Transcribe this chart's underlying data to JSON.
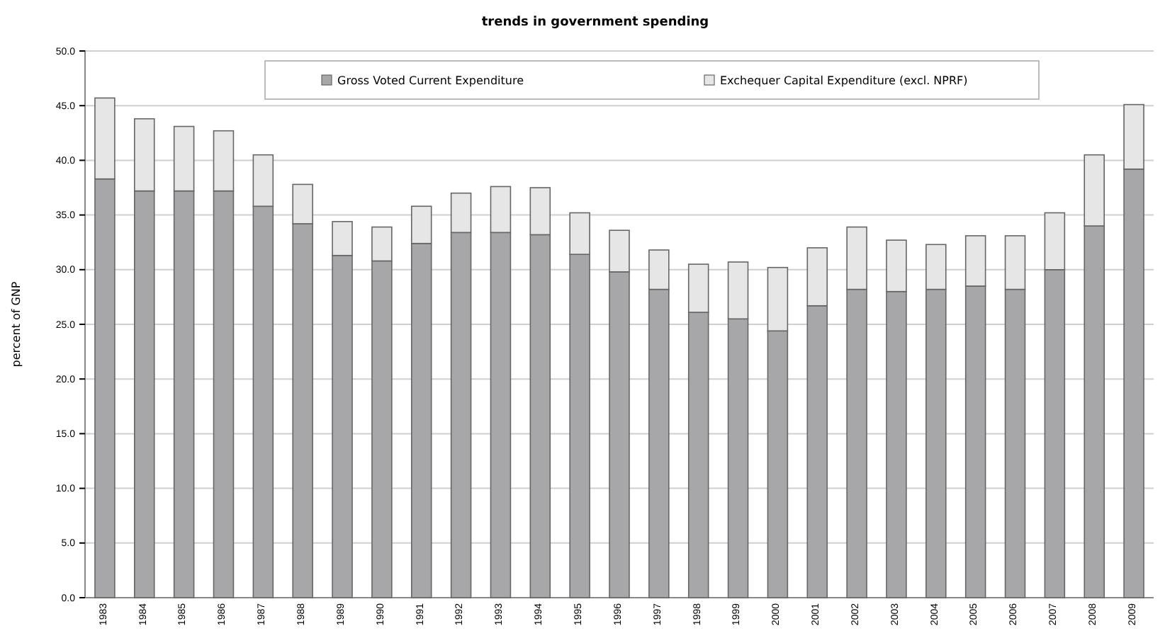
{
  "chart_data": {
    "type": "bar",
    "title": "trends in government spending",
    "ylabel": "percent of GNP",
    "categories": [
      "1983",
      "1984",
      "1985",
      "1986",
      "1987",
      "1988",
      "1989",
      "1990",
      "1991",
      "1992",
      "1993",
      "1994",
      "1995",
      "1996",
      "1997",
      "1998",
      "1999",
      "2000",
      "2001",
      "2002",
      "2003",
      "2004",
      "2005",
      "2006",
      "2007",
      "2008",
      "2009"
    ],
    "series": [
      {
        "name": "Gross Voted Current Expenditure",
        "color": "#a7a7a9",
        "values": [
          38.3,
          37.2,
          37.2,
          37.2,
          35.8,
          34.2,
          31.3,
          30.8,
          32.4,
          33.4,
          33.4,
          33.2,
          31.4,
          29.8,
          28.2,
          26.1,
          25.5,
          24.4,
          26.7,
          28.2,
          28.0,
          28.2,
          28.5,
          28.2,
          30.0,
          34.0,
          39.2
        ]
      },
      {
        "name": "Exchequer Capital Expenditure (excl. NPRF)",
        "color": "#e6e6e6",
        "values": [
          7.4,
          6.6,
          5.9,
          5.5,
          4.7,
          3.6,
          3.1,
          3.1,
          3.4,
          3.6,
          4.2,
          4.3,
          3.8,
          3.8,
          3.6,
          4.4,
          5.2,
          5.8,
          5.3,
          5.7,
          4.7,
          4.1,
          4.6,
          4.9,
          5.2,
          6.5,
          5.9
        ]
      }
    ],
    "stacked": true,
    "ylim": [
      0,
      50
    ],
    "yticks": [
      {
        "value": 0,
        "label": "0.0"
      },
      {
        "value": 5,
        "label": "5.0"
      },
      {
        "value": 10,
        "label": "10.0"
      },
      {
        "value": 15,
        "label": "15.0"
      },
      {
        "value": 20,
        "label": "20.0"
      },
      {
        "value": 25,
        "label": "25.0"
      },
      {
        "value": 30,
        "label": "30.0"
      },
      {
        "value": 35,
        "label": "35.0"
      },
      {
        "value": 40,
        "label": "40.0"
      },
      {
        "value": 45,
        "label": "45.0"
      },
      {
        "value": 50,
        "label": "50.0"
      }
    ],
    "grid": "y",
    "legend": "top"
  }
}
